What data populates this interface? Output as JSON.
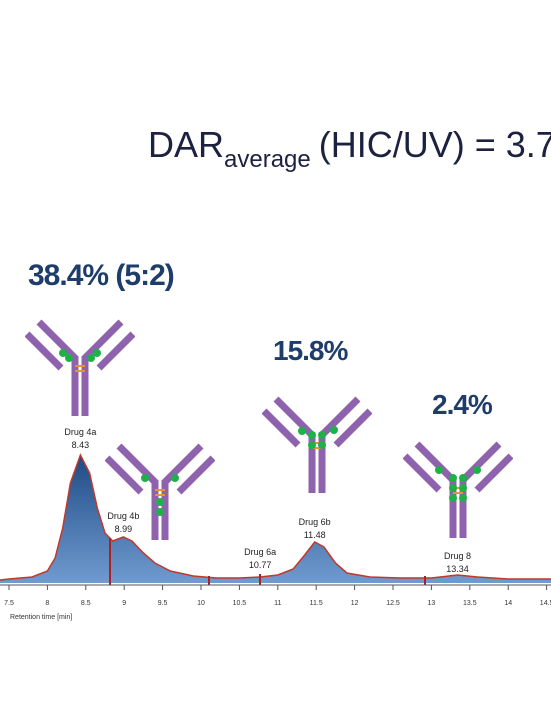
{
  "chart_data": {
    "type": "line",
    "title": [
      "DAR",
      "average",
      "(HIC/UV) = 3.7"
    ],
    "annotations": [
      "38.4% (5:2)",
      "15.8%",
      "2.4%"
    ],
    "peaks": [
      {
        "name": "Drug 4a",
        "rt": 8.43
      },
      {
        "name": "Drug 4b",
        "rt": 8.99
      },
      {
        "name": "Drug 6a",
        "rt": 10.77
      },
      {
        "name": "Drug 6b",
        "rt": 11.48
      },
      {
        "name": "Drug 8",
        "rt": 13.34
      }
    ],
    "x_label": "Retention time [min]",
    "x": [
      7.383,
      7.5,
      7.8,
      8.0,
      8.1,
      8.2,
      8.3,
      8.43,
      8.55,
      8.65,
      8.75,
      8.85,
      8.99,
      9.1,
      9.25,
      9.4,
      9.6,
      9.9,
      10.2,
      10.5,
      10.77,
      11.0,
      11.2,
      11.35,
      11.48,
      11.6,
      11.75,
      11.9,
      12.2,
      12.6,
      13.0,
      13.34,
      13.6,
      14.0,
      14.557
    ],
    "values": [
      3,
      4,
      6,
      12,
      25,
      55,
      100,
      128,
      110,
      75,
      50,
      42,
      46,
      42,
      30,
      20,
      12,
      7,
      5,
      5,
      6,
      8,
      14,
      28,
      41,
      36,
      20,
      10,
      6,
      5,
      5,
      8,
      6,
      4,
      4
    ],
    "color": "#c0392b",
    "fill": "#2f5f9c",
    "xlim": [
      7.383,
      14.557
    ],
    "ylim": [
      0,
      153
    ],
    "xticks": [
      7.5,
      8,
      8.5,
      9,
      9.5,
      10,
      10.5,
      11,
      11.5,
      12,
      12.5,
      13,
      13.5,
      14,
      14.5
    ]
  }
}
